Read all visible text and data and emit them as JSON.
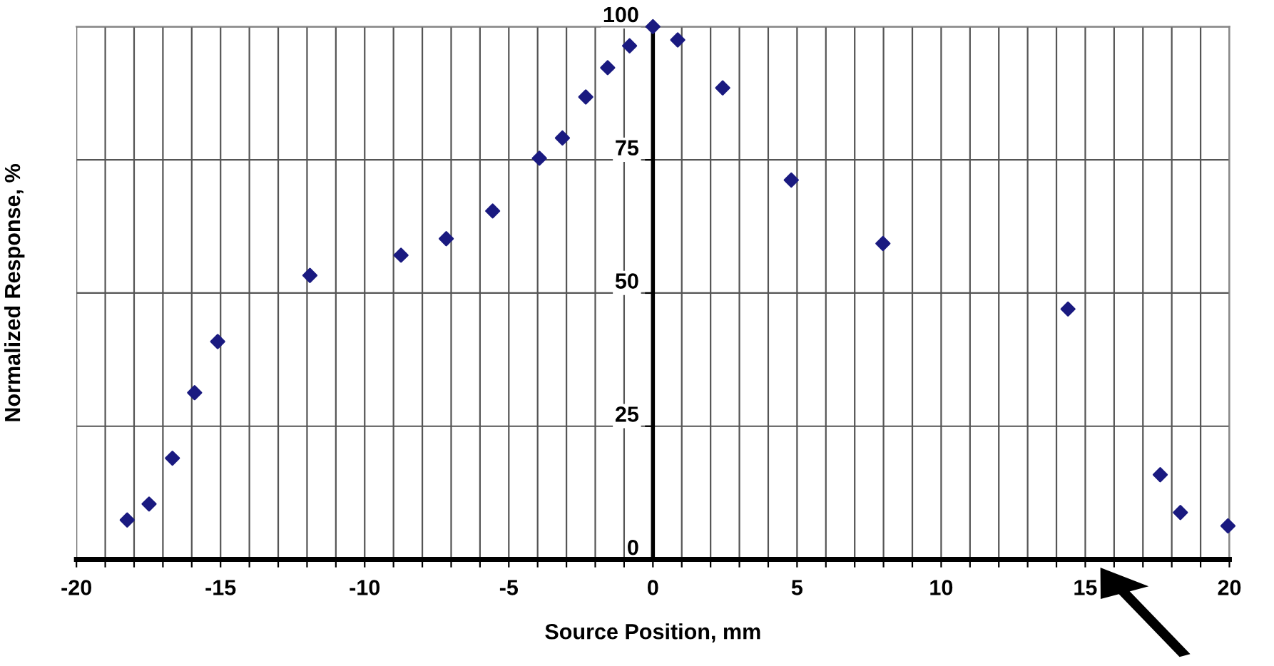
{
  "chart_data": {
    "type": "scatter",
    "xlabel": "Source Position, mm",
    "ylabel": "Normalized Response, %",
    "x": [
      -18.24,
      -17.48,
      -16.67,
      -15.9,
      -15.1,
      -11.9,
      -8.74,
      -7.17,
      -5.56,
      -3.94,
      -3.14,
      -2.33,
      -1.57,
      -0.81,
      0,
      0.86,
      2.42,
      4.8,
      7.98,
      14.4,
      17.6,
      18.3,
      19.95
    ],
    "series": [
      {
        "color": "#1a1a80",
        "values": [
          7.4,
          10.4,
          19,
          31.3,
          40.9,
          53.3,
          57.1,
          60.2,
          65.4,
          75.3,
          79.1,
          86.8,
          92.3,
          96.4,
          100,
          97.5,
          88.5,
          71.2,
          59.3,
          47,
          15.9,
          8.8,
          6.3
        ]
      }
    ],
    "marker": "diamond",
    "grid": true,
    "xlim": [
      -20,
      20
    ],
    "ylim": [
      0,
      100
    ],
    "xticks": [
      -20,
      {
        "value": -19,
        "label": null
      },
      {
        "value": -18,
        "label": null
      },
      {
        "value": -17,
        "label": null
      },
      {
        "value": -16,
        "label": null
      },
      -15,
      {
        "value": -14,
        "label": null
      },
      {
        "value": -13,
        "label": null
      },
      {
        "value": -12,
        "label": null
      },
      {
        "value": -11,
        "label": null
      },
      -10,
      {
        "value": -9,
        "label": null
      },
      {
        "value": -8,
        "label": null
      },
      {
        "value": -7,
        "label": null
      },
      {
        "value": -6,
        "label": null
      },
      -5,
      {
        "value": -4,
        "label": null
      },
      {
        "value": -3,
        "label": null
      },
      {
        "value": -2,
        "label": null
      },
      {
        "value": -1,
        "label": null
      },
      0,
      {
        "value": 1,
        "label": null
      },
      {
        "value": 2,
        "label": null
      },
      {
        "value": 3,
        "label": null
      },
      {
        "value": 4,
        "label": null
      },
      5,
      {
        "value": 6,
        "label": null
      },
      {
        "value": 7,
        "label": null
      },
      {
        "value": 8,
        "label": null
      },
      {
        "value": 9,
        "label": null
      },
      10,
      {
        "value": 11,
        "label": null
      },
      {
        "value": 12,
        "label": null
      },
      {
        "value": 13,
        "label": null
      },
      {
        "value": 14,
        "label": null
      },
      15,
      {
        "value": 16,
        "label": null
      },
      {
        "value": 17,
        "label": null
      },
      {
        "value": 18,
        "label": null
      },
      {
        "value": 19,
        "label": null
      },
      20
    ],
    "yticks": [
      0,
      25,
      50,
      75,
      100
    ]
  }
}
